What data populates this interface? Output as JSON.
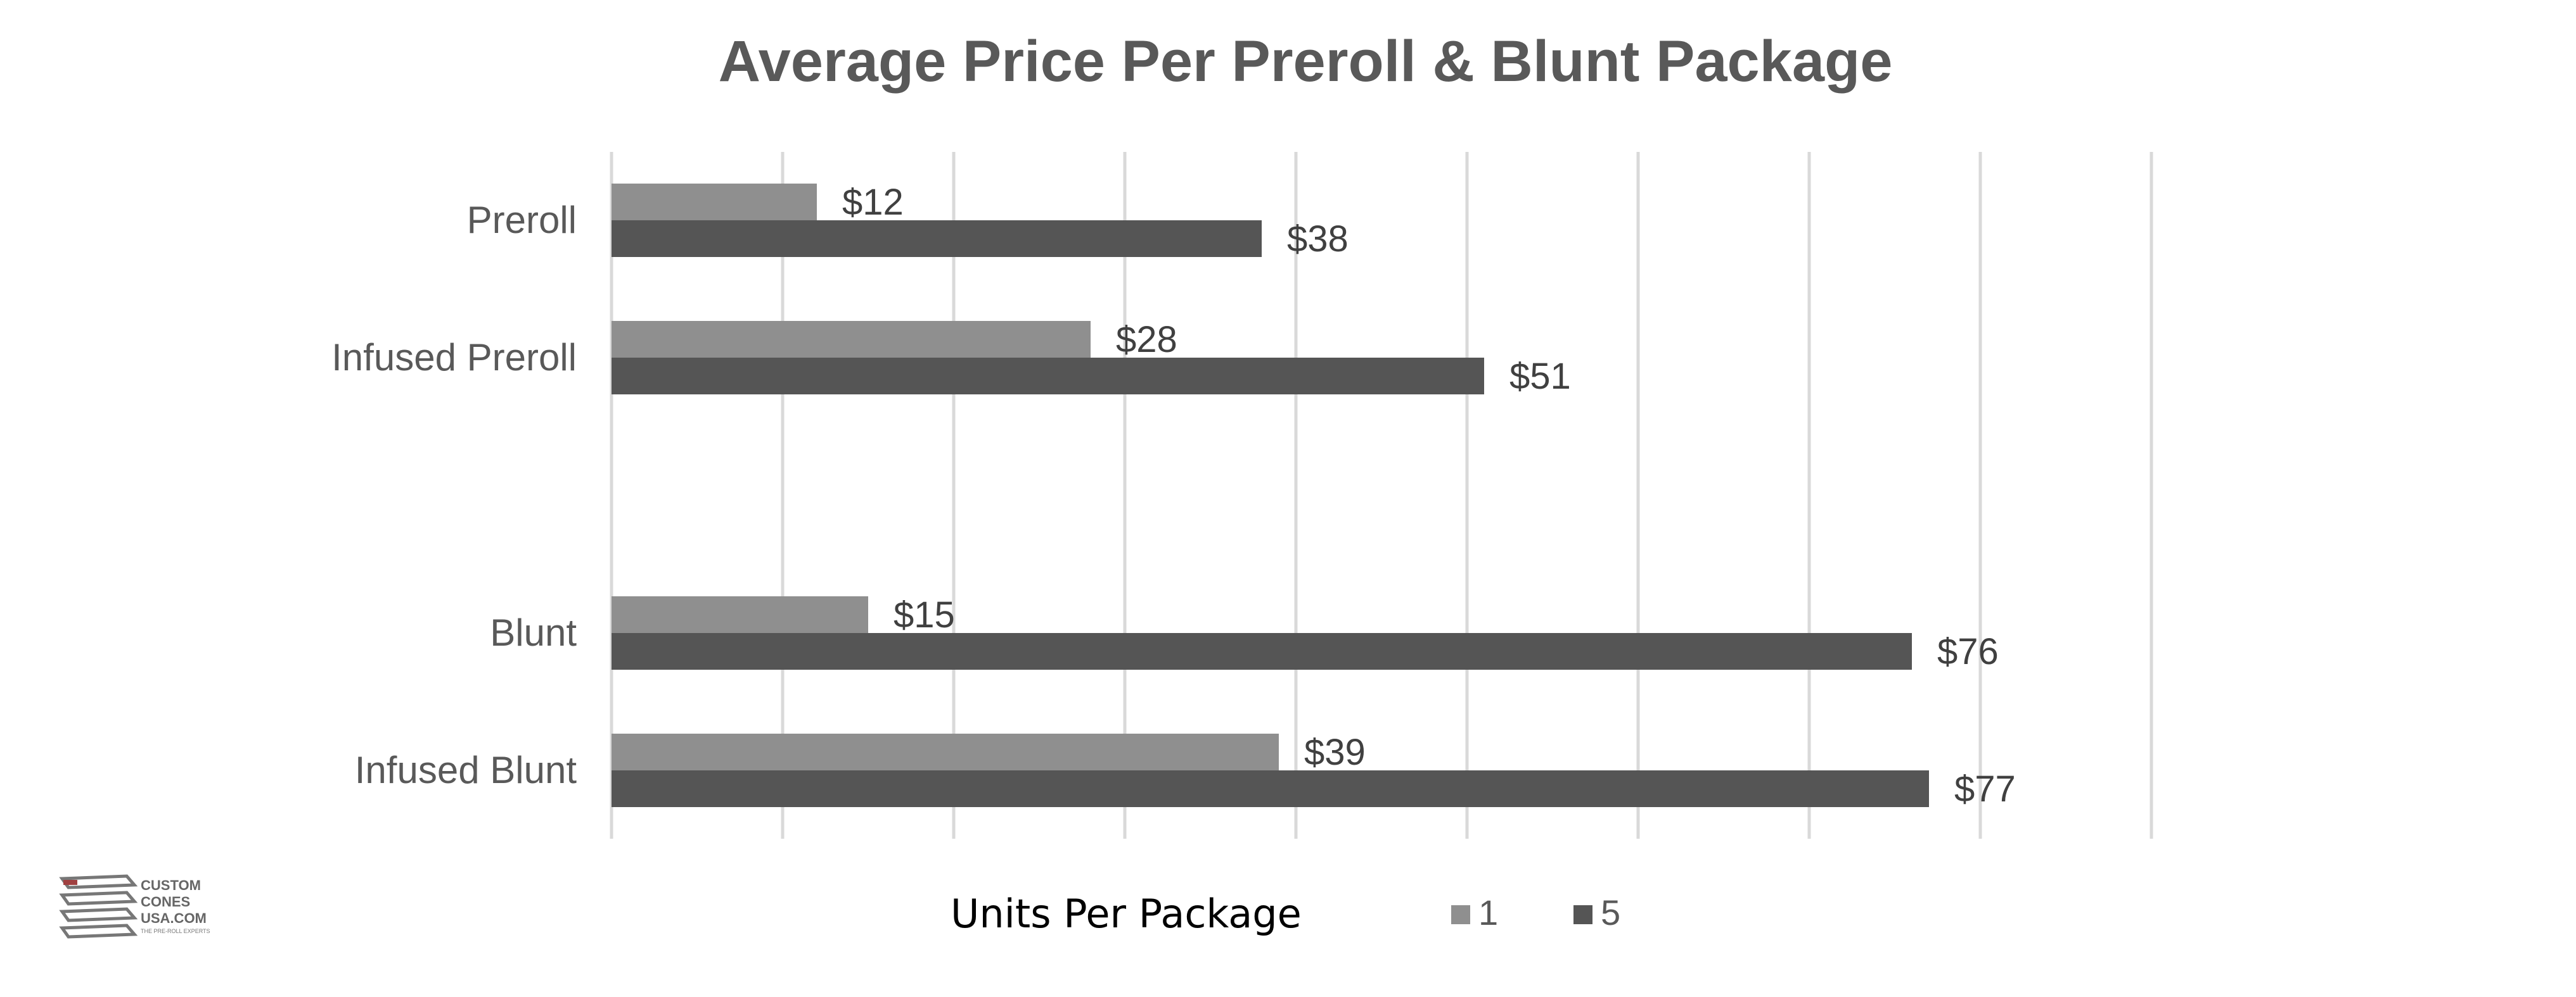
{
  "chart_data": {
    "type": "bar",
    "orientation": "horizontal",
    "title": "Average Price Per Preroll & Blunt Package",
    "categories": [
      "Preroll",
      "Infused Preroll",
      "Blunt",
      "Infused Blunt"
    ],
    "series": [
      {
        "name": "1",
        "values": [
          12,
          28,
          15,
          39
        ],
        "labels": [
          "$12",
          "$28",
          "$15",
          "$39"
        ],
        "color": "#8f8f8f"
      },
      {
        "name": "5",
        "values": [
          38,
          51,
          76,
          77
        ],
        "labels": [
          "$38",
          "$51",
          "$76",
          "$77"
        ],
        "color": "#555555"
      }
    ],
    "xlim": [
      0,
      90
    ],
    "grid": true,
    "legend": {
      "title": "Units Per Package",
      "position": "bottom"
    },
    "tick_labels_visible": false
  },
  "watermark": {
    "lines": [
      "CUSTOM",
      "CONES",
      "USA.COM",
      "THE PRE-ROLL EXPERTS"
    ]
  },
  "colors": {
    "title": "#595959",
    "category_label": "#595959",
    "value_label": "#404040",
    "grid": "#d9d9d9",
    "legend_title": "#000000",
    "legend_text": "#595959"
  }
}
